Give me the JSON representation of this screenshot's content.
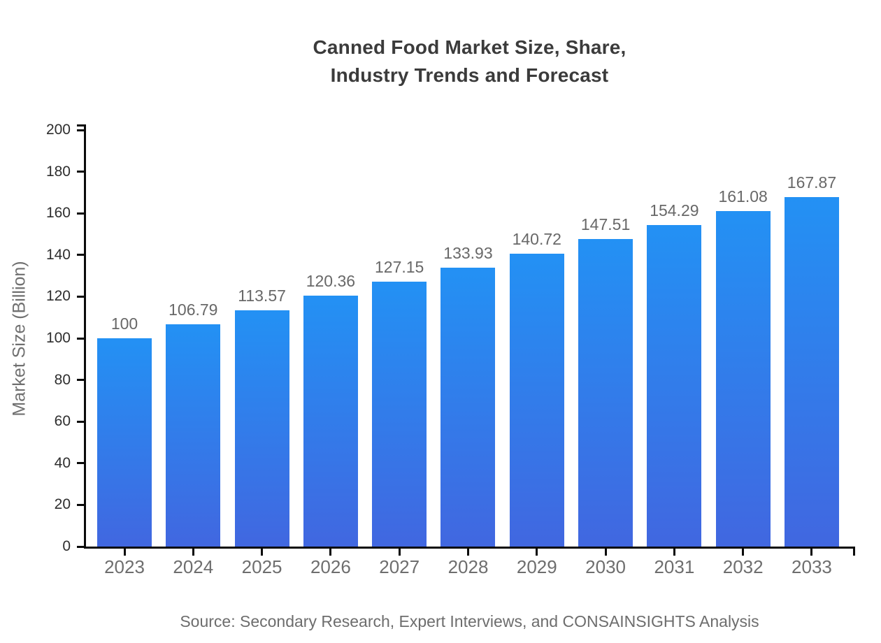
{
  "chart_data": {
    "type": "bar",
    "title_lines": [
      "Canned Food Market Size, Share,",
      "Industry Trends and Forecast"
    ],
    "categories": [
      "2023",
      "2024",
      "2025",
      "2026",
      "2027",
      "2028",
      "2029",
      "2030",
      "2031",
      "2032",
      "2033"
    ],
    "values": [
      100,
      106.79,
      113.57,
      120.36,
      127.15,
      133.93,
      140.72,
      147.51,
      154.29,
      161.08,
      167.87
    ],
    "value_labels": [
      "100",
      "106.79",
      "113.57",
      "120.36",
      "127.15",
      "133.93",
      "140.72",
      "147.51",
      "154.29",
      "161.08",
      "167.87"
    ],
    "xlabel": "",
    "ylabel": "Market Size (Billion)",
    "ylim": [
      0,
      200
    ],
    "ytick_step": 20,
    "ytick_labels": [
      "0",
      "20",
      "40",
      "60",
      "80",
      "100",
      "120",
      "140",
      "160",
      "180",
      "200"
    ],
    "grid": false,
    "legend": "none",
    "colors": {
      "bar_gradient_top": "#2391f4",
      "bar_gradient_bottom": "#4167e0",
      "axis": "#0a0a0a",
      "title": "#3b3b3b"
    },
    "source_note": "Source: Secondary Research, Expert Interviews, and CONSAINSIGHTS Analysis"
  }
}
